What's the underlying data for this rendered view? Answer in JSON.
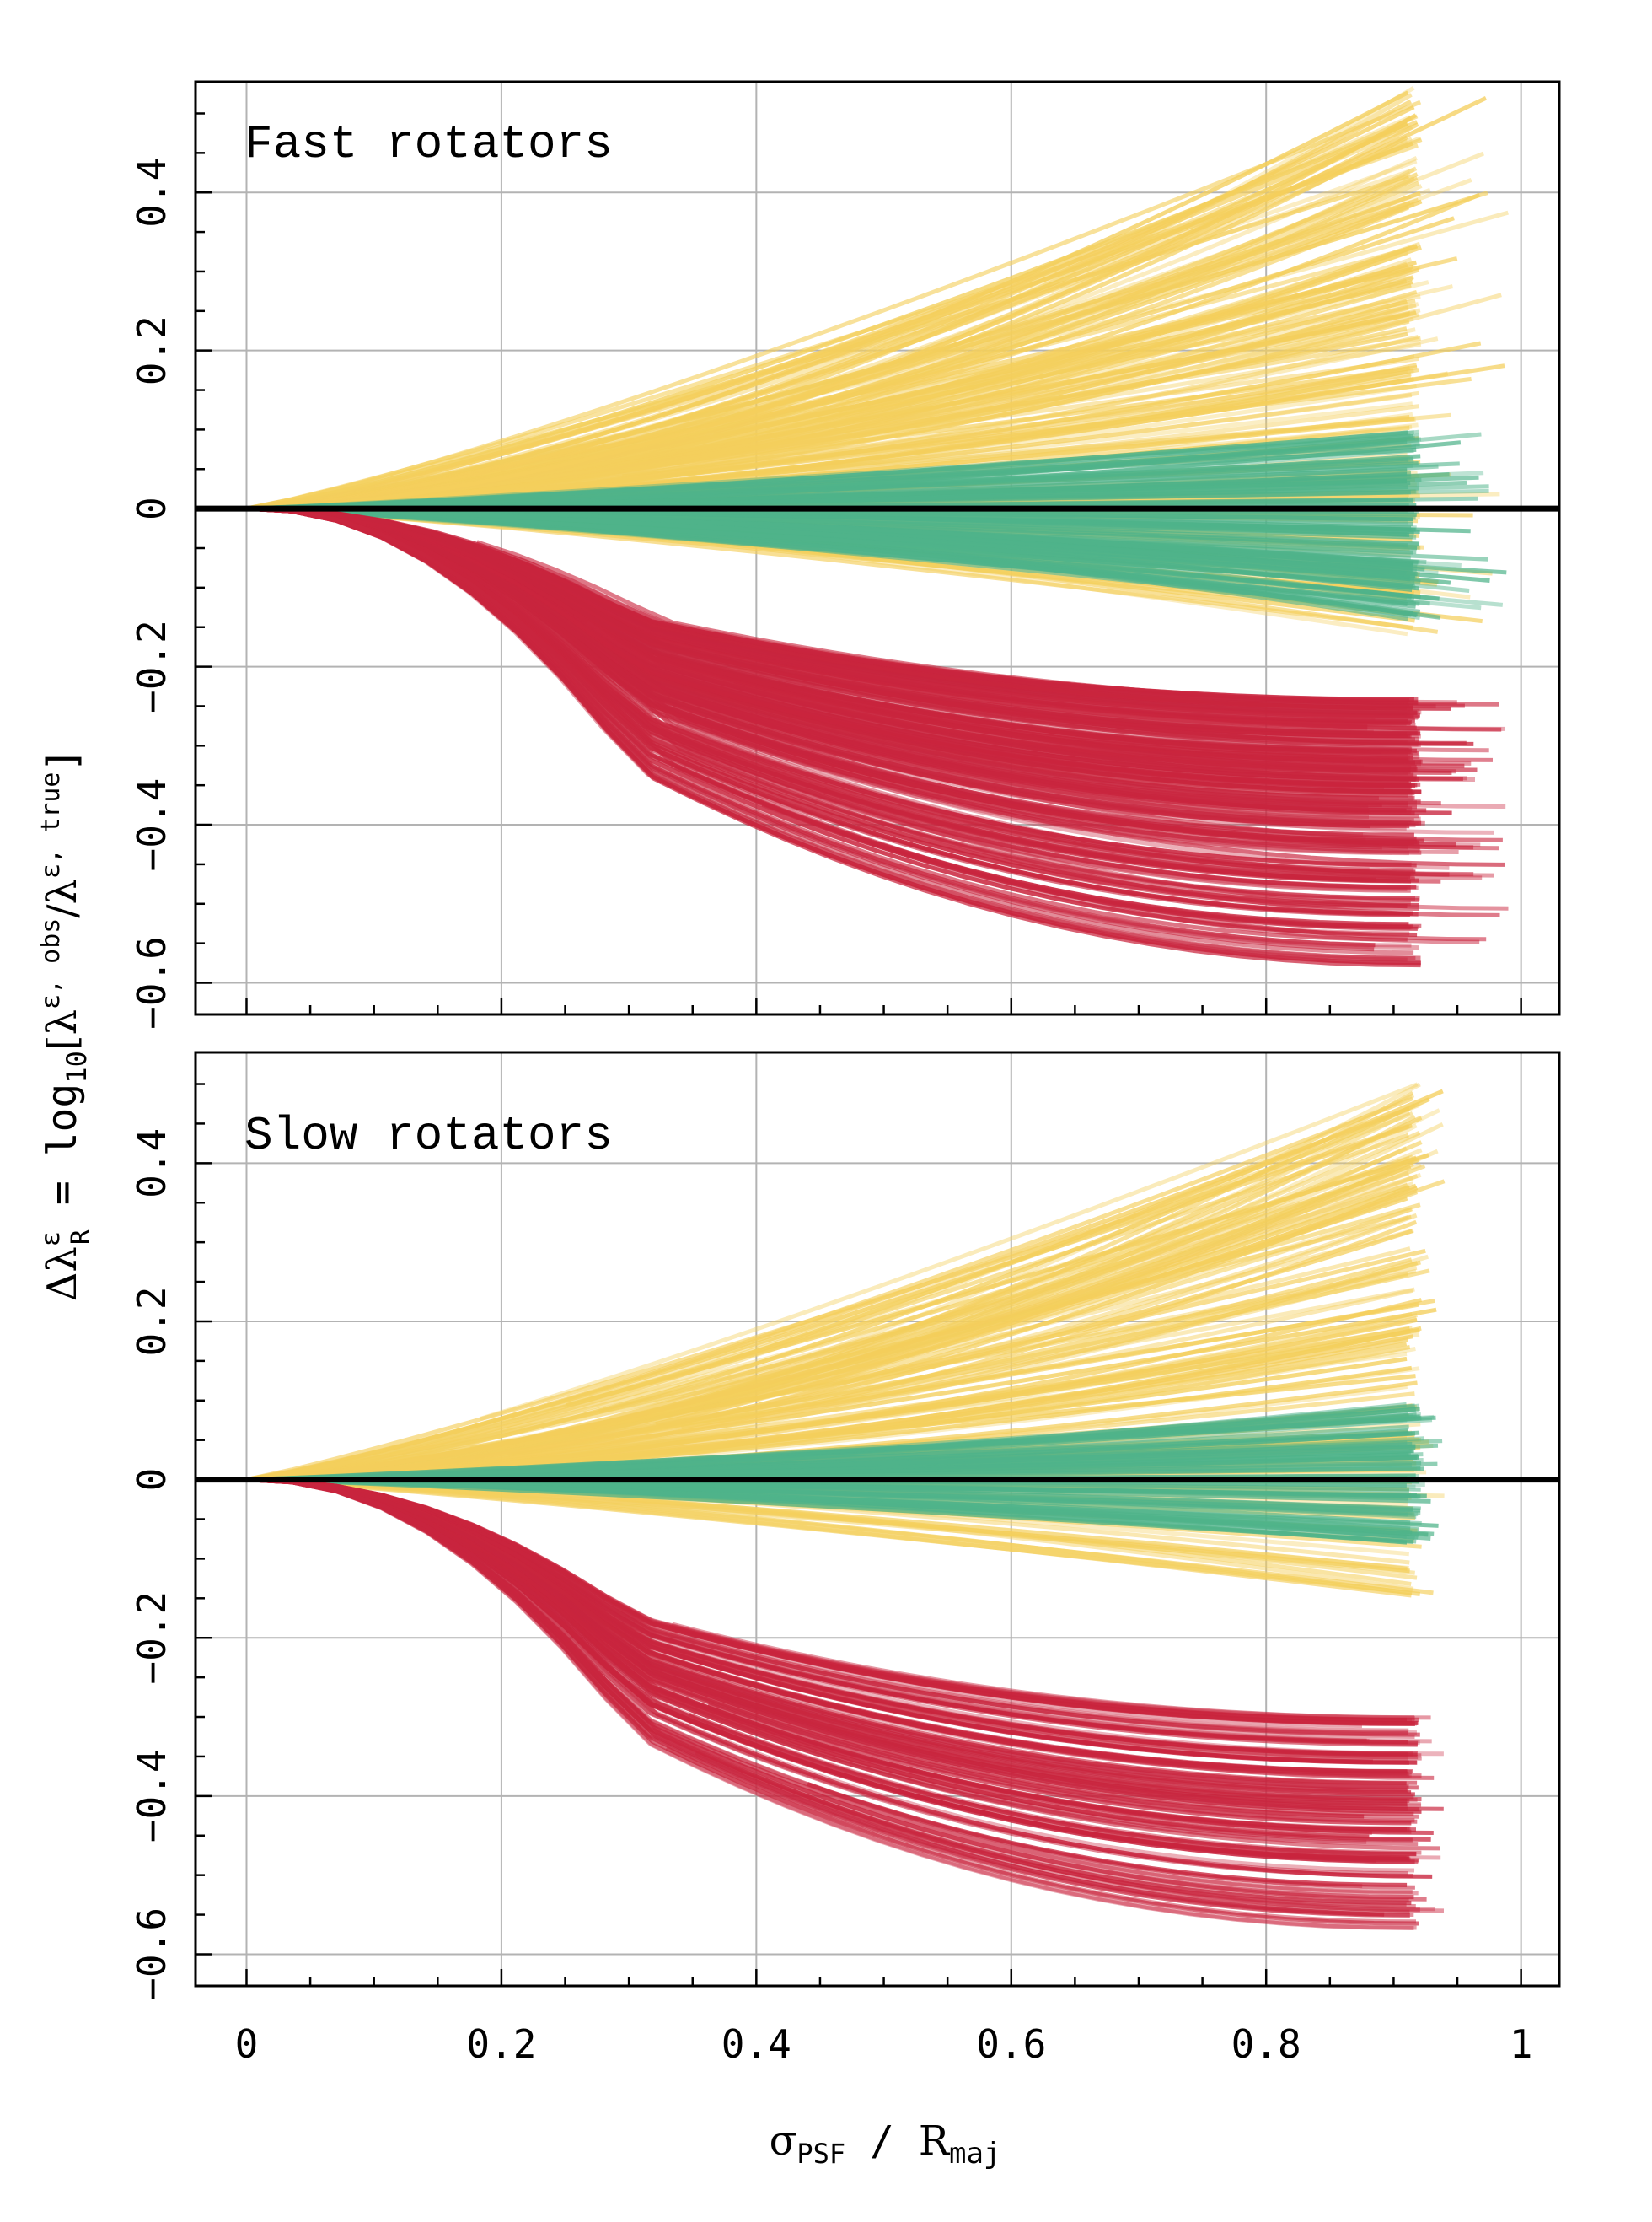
{
  "chart_data": [
    {
      "type": "line",
      "title": "Fast rotators",
      "xlim": [
        -0.04,
        1.03
      ],
      "ylim": [
        -0.64,
        0.54
      ],
      "yticks": [
        -0.6,
        -0.4,
        -0.2,
        0,
        0.2,
        0.4
      ],
      "ytick_labels": [
        "−0.6",
        "−0.4",
        "−0.2",
        "0",
        "0.2",
        "0.4"
      ],
      "grid": true,
      "reference_line_y": 0,
      "series": [
        {
          "name": "positive bias (yellow)",
          "color": "#f4cf5c",
          "count": 180,
          "x_end": [
            0.91,
            0.99
          ],
          "y_end": [
            -0.16,
            0.54
          ]
        },
        {
          "name": "near-zero bias (green)",
          "color": "#4fb38a",
          "count": 140,
          "x_end": [
            0.91,
            0.99
          ],
          "y_end": [
            -0.14,
            0.1
          ]
        },
        {
          "name": "negative bias (red)",
          "color": "#c9253e",
          "count": 240,
          "x_end": [
            0.91,
            0.99
          ],
          "y_end": [
            -0.58,
            -0.24
          ]
        }
      ]
    },
    {
      "type": "line",
      "title": "Slow rotators",
      "xlim": [
        -0.04,
        1.03
      ],
      "ylim": [
        -0.64,
        0.54
      ],
      "yticks": [
        -0.6,
        -0.4,
        -0.2,
        0,
        0.2,
        0.4
      ],
      "ytick_labels": [
        "−0.6",
        "−0.4",
        "−0.2",
        "0",
        "0.2",
        "0.4"
      ],
      "xticks": [
        0,
        0.2,
        0.4,
        0.6,
        0.8,
        1
      ],
      "xtick_labels": [
        "0",
        "0.2",
        "0.4",
        "0.6",
        "0.8",
        "1"
      ],
      "grid": true,
      "reference_line_y": 0,
      "series": [
        {
          "name": "positive bias (yellow)",
          "color": "#f4cf5c",
          "count": 150,
          "x_end": [
            0.91,
            0.94
          ],
          "y_end": [
            -0.15,
            0.5
          ]
        },
        {
          "name": "near-zero bias (green)",
          "color": "#4fb38a",
          "count": 90,
          "x_end": [
            0.91,
            0.94
          ],
          "y_end": [
            -0.08,
            0.1
          ]
        },
        {
          "name": "negative bias (red)",
          "color": "#c9253e",
          "count": 130,
          "x_end": [
            0.91,
            0.94
          ],
          "y_end": [
            -0.57,
            -0.3
          ]
        }
      ]
    }
  ],
  "axes": {
    "xlabel_sigma": "σ",
    "xlabel_sigma_sub": "PSF",
    "xlabel_sep": " / ",
    "xlabel_R": "R",
    "xlabel_R_sub": "maj",
    "ylabel": {
      "delta": "Δλ",
      "eps": "ε",
      "R": "R",
      "eq": " = log",
      "log_sub": "10",
      "lbracket": "[λ",
      "eps_obs": "ε, obs",
      "slash": "/λ",
      "eps_true": "ε, true",
      "rbracket": "]"
    }
  },
  "colors": {
    "yellow": "#f4cf5c",
    "green": "#4fb38a",
    "red": "#c9253e",
    "grid": "#b3b3b3",
    "zero_line": "#000000"
  }
}
